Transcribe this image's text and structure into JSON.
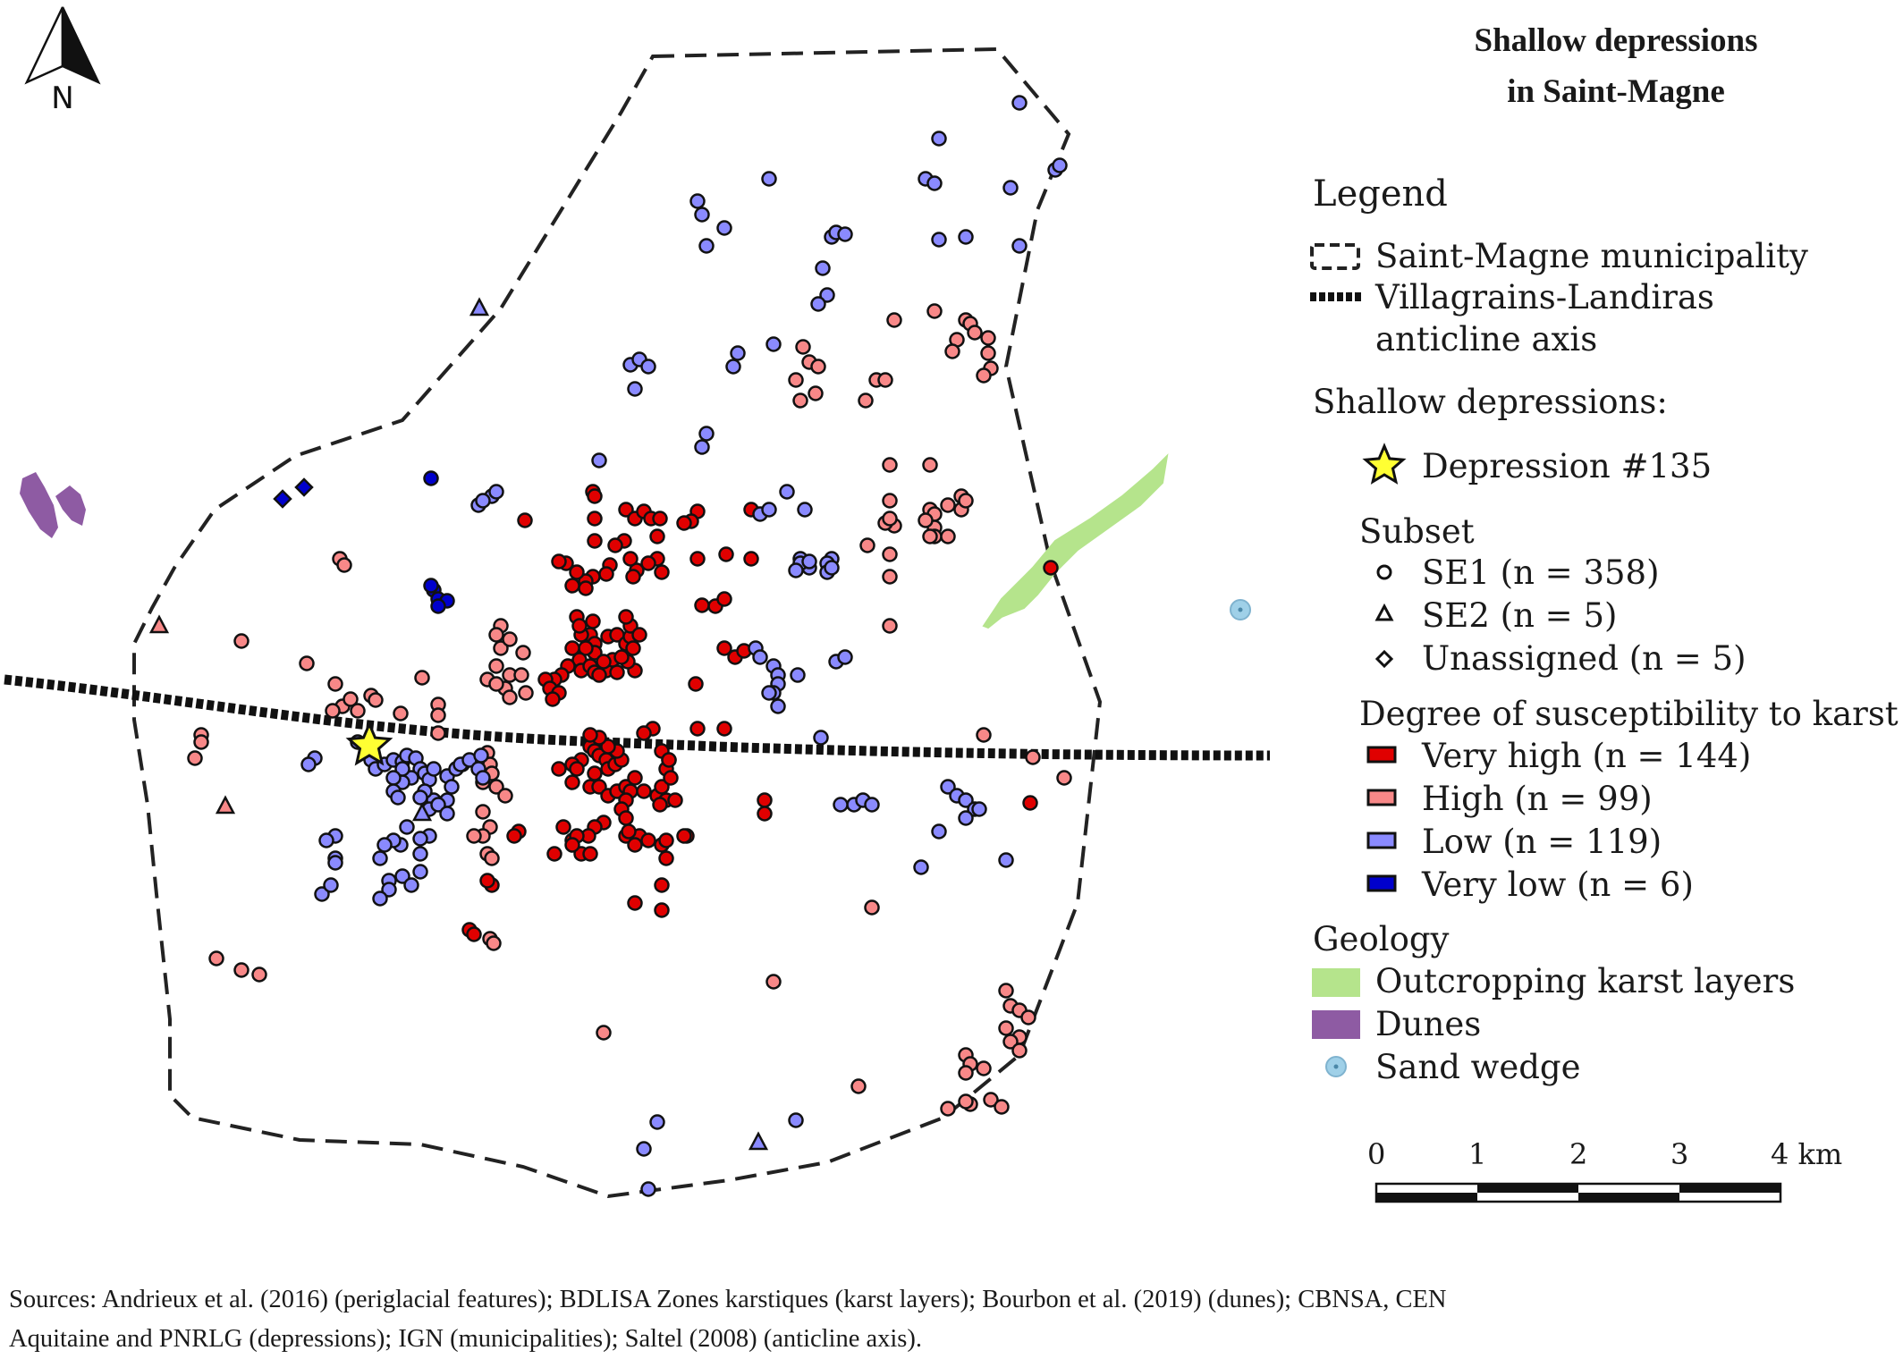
{
  "title": {
    "line1": "Shallow depressions",
    "line2": "in Saint-Magne"
  },
  "north_arrow": {
    "label": "N",
    "icon": "north-arrow-icon"
  },
  "legend": {
    "heading": "Legend",
    "municipality": "Saint-Magne municipality",
    "anticline_line1": "Villagrains-Landiras",
    "anticline_line2": "anticline axis",
    "depressions_heading": "Shallow depressions:",
    "depression_135": "Depression #135",
    "subset_heading": "Subset",
    "se1": "SE1 (n = 358)",
    "se2": "SE2 (n = 5)",
    "unassigned": "Unassigned (n = 5)",
    "degree_heading": "Degree of susceptibility to karst",
    "very_high": "Very high (n = 144)",
    "high": "High (n = 99)",
    "low": "Low (n = 119)",
    "very_low": "Very low (n = 6)",
    "geology_heading": "Geology",
    "karst_layers": "Outcropping karst layers",
    "dunes": "Dunes",
    "sand_wedge": "Sand wedge"
  },
  "scale_bar": {
    "labels": [
      "0",
      "1",
      "2",
      "3",
      "4 km"
    ]
  },
  "sources": {
    "line1": "Sources: Andrieux et al. (2016) (periglacial features); BDLISA Zones karstiques (karst layers); Bourbon et al. (2019) (dunes);  CBNSA, CEN",
    "line2": "Aquitaine and PNRLG (depressions); IGN (municipalities); Saltel (2008) (anticline axis)."
  },
  "colors": {
    "very_high": "#e00000",
    "high": "#f88888",
    "low": "#8a8aff",
    "very_low": "#0000cc",
    "karst_layers": "#b5e48c",
    "dunes": "#8e5ba3",
    "sand_wedge": "#9fd0e8",
    "star": "#ffff33"
  }
}
